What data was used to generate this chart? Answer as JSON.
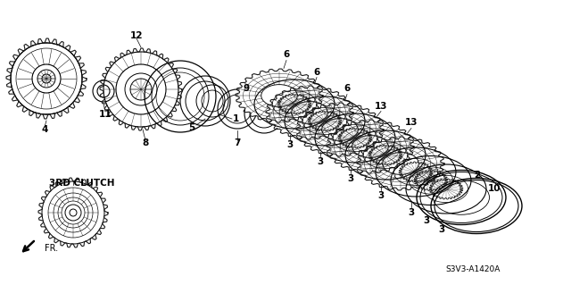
{
  "bg_color": "#ffffff",
  "line_color": "#1a1a1a",
  "diagram_code": "S3V3-A1420A",
  "figsize": [
    6.4,
    3.19
  ],
  "dpi": 100
}
